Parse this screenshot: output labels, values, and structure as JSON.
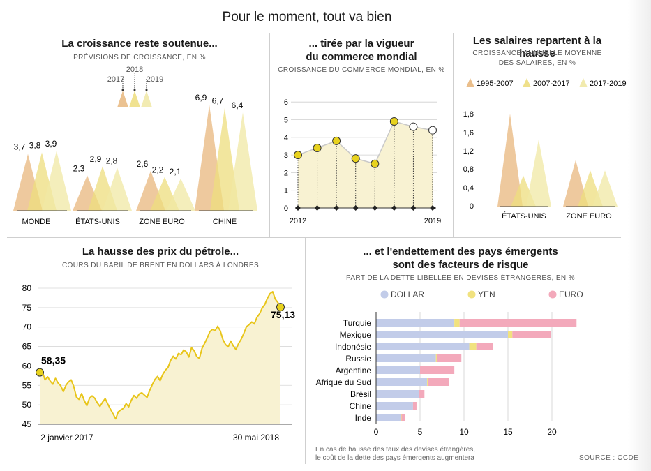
{
  "title": "Pour le moment, tout va bien",
  "colors": {
    "c2017": "#e8b77e",
    "c2018": "#eddd7d",
    "c2019": "#f0e8a4",
    "brent_line": "#e8c51a",
    "brent_fill": "#f8f2d2",
    "dollar": "#c2cce9",
    "yen": "#f1e27f",
    "euro": "#f3a9bb"
  },
  "panels": {
    "growth": {
      "title": "La croissance reste soutenue...",
      "subtitle": "PRÉVISIONS DE CROISSANCE, EN %"
    },
    "trade": {
      "title_line1": "... tirée par la vigueur",
      "title_line2": "du commerce mondial",
      "subtitle": "CROISSANCE DU COMMERCE MONDIAL, EN %"
    },
    "wages": {
      "title": "Les salaires repartent à la hausse",
      "subtitle_line1": "CROISSANCE ANNUELLE MOYENNE",
      "subtitle_line2": "DES SALAIRES, EN %"
    },
    "oil": {
      "title": "La hausse des prix du pétrole...",
      "subtitle": "COURS DU BARIL DE BRENT EN DOLLARS À LONDRES"
    },
    "debt": {
      "title_line1": "... et l'endettement des pays émergents",
      "title_line2": "sont des facteurs de risque",
      "subtitle": "PART DE LA DETTE LIBELLÉE EN DEVISES ÉTRANGÈRES, EN %"
    }
  },
  "note_line1": "En cas de hausse des taux des devises étrangères,",
  "note_line2": "le coût de la dette des pays émergents augmentera",
  "source": "SOURCE : OCDE",
  "chart_data": [
    {
      "id": "growth",
      "type": "area",
      "legend": [
        "2017",
        "2018",
        "2019"
      ],
      "categories": [
        "MONDE",
        "ÉTATS-UNIS",
        "ZONE EURO",
        "CHINE"
      ],
      "series": [
        {
          "name": "2017",
          "values": [
            3.7,
            2.3,
            2.6,
            6.9
          ],
          "labels": [
            "3,7",
            "2,3",
            "2,6",
            "6,9"
          ]
        },
        {
          "name": "2018",
          "values": [
            3.8,
            2.9,
            2.2,
            6.7
          ],
          "labels": [
            "3,8",
            "2,9",
            "2,2",
            "6,7"
          ]
        },
        {
          "name": "2019",
          "values": [
            3.9,
            2.8,
            2.1,
            6.4
          ],
          "labels": [
            "3,9",
            "2,8",
            "2,1",
            "6,4"
          ]
        }
      ],
      "ylim": [
        0,
        7
      ]
    },
    {
      "id": "trade",
      "type": "line",
      "x": [
        2012,
        2013,
        2014,
        2015,
        2016,
        2017,
        2018,
        2019
      ],
      "values": [
        3.0,
        3.4,
        3.8,
        2.8,
        2.5,
        4.9,
        4.6,
        4.4
      ],
      "x_tick_labels": [
        "2012",
        "2019"
      ],
      "y_ticks": [
        "0",
        "1",
        "2",
        "3",
        "4",
        "5",
        "6"
      ],
      "ylim": [
        0,
        6
      ]
    },
    {
      "id": "wages",
      "type": "area",
      "legend": [
        "1995-2007",
        "2007-2017",
        "2017-2019"
      ],
      "categories": [
        "ÉTATS-UNIS",
        "ZONE EURO"
      ],
      "series": [
        {
          "name": "1995-2007",
          "values": [
            1.8,
            0.9
          ]
        },
        {
          "name": "2007-2017",
          "values": [
            0.6,
            0.7
          ]
        },
        {
          "name": "2017-2019",
          "values": [
            1.3,
            0.7
          ]
        }
      ],
      "y_ticks": [
        "0",
        "0,4",
        "0,8",
        "1,2",
        "1,6",
        "1,8"
      ],
      "ylim": [
        0,
        1.9
      ]
    },
    {
      "id": "oil",
      "type": "line",
      "x_tick_labels": [
        "2 janvier 2017",
        "30 mai 2018"
      ],
      "y_ticks": [
        "45",
        "50",
        "55",
        "60",
        "65",
        "70",
        "75",
        "80"
      ],
      "ylim": [
        45,
        80
      ],
      "values": [
        58.35,
        58.5,
        56.4,
        57.2,
        56.1,
        55.3,
        56.8,
        55.6,
        54.9,
        53.4,
        55.0,
        55.9,
        56.4,
        54.7,
        52.0,
        51.4,
        52.9,
        51.1,
        49.8,
        51.7,
        52.3,
        51.7,
        50.5,
        49.6,
        50.7,
        51.6,
        50.2,
        48.9,
        47.7,
        46.4,
        48.2,
        48.7,
        49.1,
        50.3,
        49.5,
        51.2,
        52.4,
        51.7,
        52.8,
        53.1,
        52.5,
        51.9,
        53.7,
        55.2,
        56.5,
        57.3,
        56.2,
        57.8,
        58.9,
        59.6,
        61.4,
        62.5,
        61.8,
        63.2,
        62.9,
        64.1,
        63.6,
        62.3,
        64.7,
        63.9,
        62.4,
        61.9,
        64.5,
        65.8,
        67.2,
        68.8,
        69.4,
        69.1,
        70.2,
        69.0,
        66.8,
        65.5,
        64.9,
        66.4,
        65.1,
        64.2,
        65.8,
        66.9,
        68.4,
        70.1,
        70.6,
        71.3,
        70.8,
        72.5,
        73.4,
        74.9,
        75.8,
        77.4,
        78.6,
        79.1,
        77.2,
        76.3,
        75.13
      ],
      "annotations": [
        "58,35",
        "75,13"
      ]
    },
    {
      "id": "debt",
      "type": "bar",
      "legend": [
        "DOLLAR",
        "YEN",
        "EURO"
      ],
      "categories": [
        "Turquie",
        "Mexique",
        "Indonésie",
        "Russie",
        "Argentine",
        "Afrique du Sud",
        "Brésil",
        "Chine",
        "Inde"
      ],
      "series": [
        {
          "name": "DOLLAR",
          "values": [
            8.9,
            15.0,
            10.6,
            6.8,
            5.0,
            5.8,
            4.9,
            4.2,
            2.8
          ]
        },
        {
          "name": "YEN",
          "values": [
            0.6,
            0.5,
            0.8,
            0.1,
            0.0,
            0.1,
            0.0,
            0.0,
            0.1
          ]
        },
        {
          "name": "EURO",
          "values": [
            13.3,
            4.4,
            1.9,
            2.8,
            3.9,
            2.4,
            0.6,
            0.4,
            0.4
          ]
        }
      ],
      "x_ticks": [
        "0",
        "5",
        "10",
        "15",
        "20"
      ],
      "xlim": [
        0,
        23
      ]
    }
  ]
}
